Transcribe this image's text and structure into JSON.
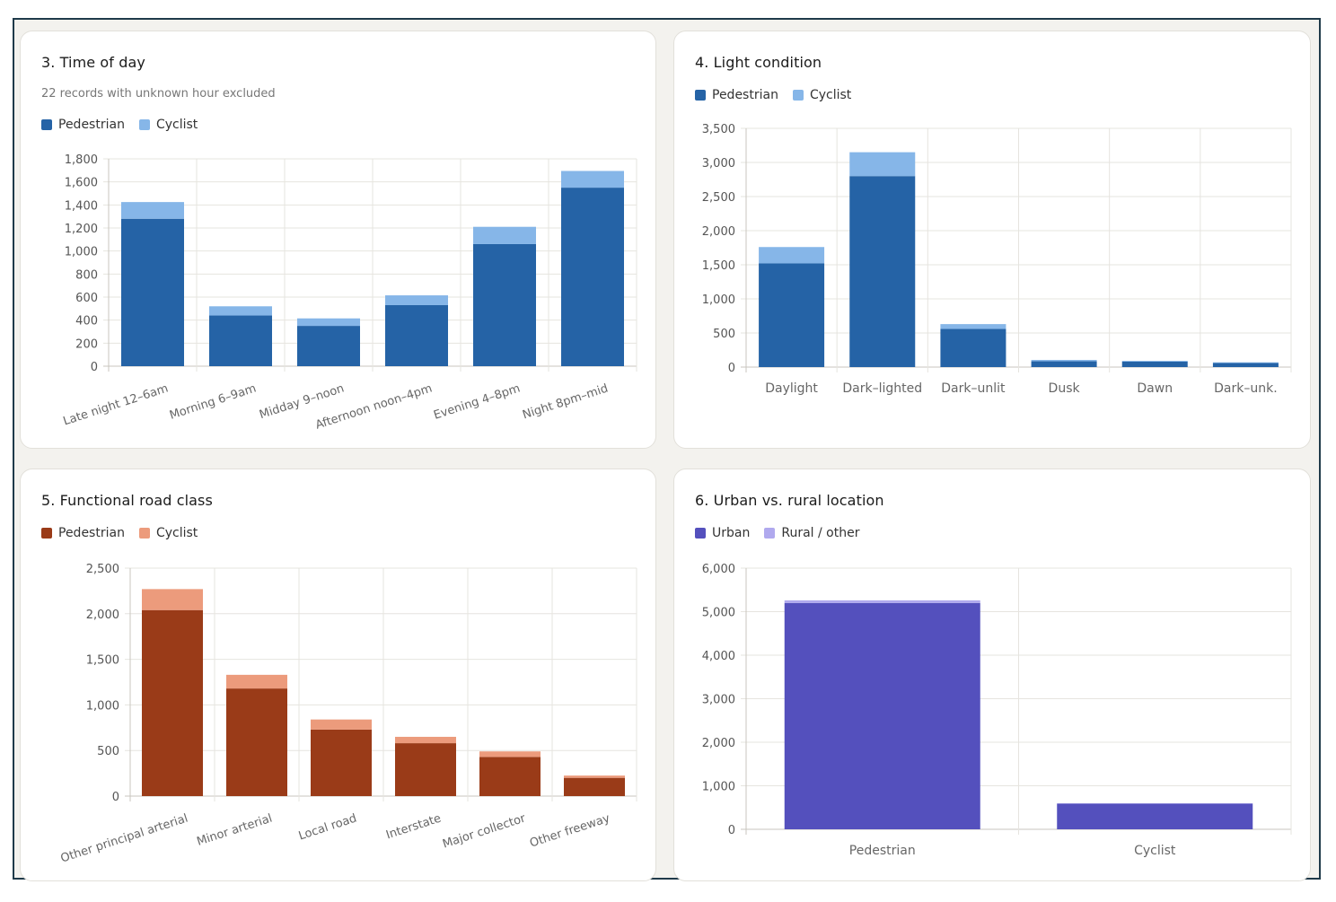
{
  "chart_data": [
    {
      "type": "bar",
      "stacked": true,
      "title": "3. Time of day",
      "subtitle": "22 records with unknown hour excluded",
      "categories": [
        "Late night 12–6am",
        "Morning 6–9am",
        "Midday 9–noon",
        "Afternoon noon–4pm",
        "Evening 4–8pm",
        "Night 8pm–mid"
      ],
      "series": [
        {
          "name": "Pedestrian",
          "color": "#2563a6",
          "values": [
            1280,
            440,
            350,
            530,
            1060,
            1550
          ]
        },
        {
          "name": "Cyclist",
          "color": "#86b6e8",
          "values": [
            145,
            80,
            65,
            85,
            150,
            145
          ]
        }
      ],
      "yticks": [
        "0",
        "200",
        "400",
        "600",
        "800",
        "1,000",
        "1,200",
        "1,400",
        "1,600",
        "1,800"
      ],
      "ylim": [
        0,
        1800
      ],
      "xlabel": "",
      "ylabel": "",
      "rotated_labels": true
    },
    {
      "type": "bar",
      "stacked": true,
      "title": "4. Light condition",
      "subtitle": "",
      "categories": [
        "Daylight",
        "Dark–lighted",
        "Dark–unlit",
        "Dusk",
        "Dawn",
        "Dark–unk."
      ],
      "series": [
        {
          "name": "Pedestrian",
          "color": "#2563a6",
          "values": [
            1520,
            2800,
            560,
            85,
            80,
            60
          ]
        },
        {
          "name": "Cyclist",
          "color": "#86b6e8",
          "values": [
            240,
            350,
            70,
            20,
            12,
            10
          ]
        }
      ],
      "yticks": [
        "0",
        "500",
        "1,000",
        "1,500",
        "2,000",
        "2,500",
        "3,000",
        "3,500"
      ],
      "ylim": [
        0,
        3500
      ],
      "xlabel": "",
      "ylabel": "",
      "rotated_labels": false
    },
    {
      "type": "bar",
      "stacked": true,
      "title": "5. Functional road class",
      "subtitle": "",
      "categories": [
        "Other principal arterial",
        "Minor arterial",
        "Local road",
        "Interstate",
        "Major collector",
        "Other freeway"
      ],
      "series": [
        {
          "name": "Pedestrian",
          "color": "#9a3b18",
          "values": [
            2040,
            1180,
            730,
            580,
            430,
            200
          ]
        },
        {
          "name": "Cyclist",
          "color": "#ec9b7c",
          "values": [
            230,
            150,
            110,
            70,
            60,
            25
          ]
        }
      ],
      "yticks": [
        "0",
        "500",
        "1,000",
        "1,500",
        "2,000",
        "2,500"
      ],
      "ylim": [
        0,
        2500
      ],
      "xlabel": "",
      "ylabel": "",
      "rotated_labels": true
    },
    {
      "type": "bar",
      "stacked": true,
      "title": "6. Urban vs. rural location",
      "subtitle": "",
      "categories": [
        "Pedestrian",
        "Cyclist"
      ],
      "series": [
        {
          "name": "Urban",
          "color": "#5450bd",
          "values": [
            5200,
            590
          ]
        },
        {
          "name": "Rural / other",
          "color": "#b0a9ee",
          "values": [
            60,
            8
          ]
        }
      ],
      "yticks": [
        "0",
        "1,000",
        "2,000",
        "3,000",
        "4,000",
        "5,000",
        "6,000"
      ],
      "ylim": [
        0,
        6000
      ],
      "xlabel": "",
      "ylabel": "",
      "rotated_labels": false
    }
  ]
}
